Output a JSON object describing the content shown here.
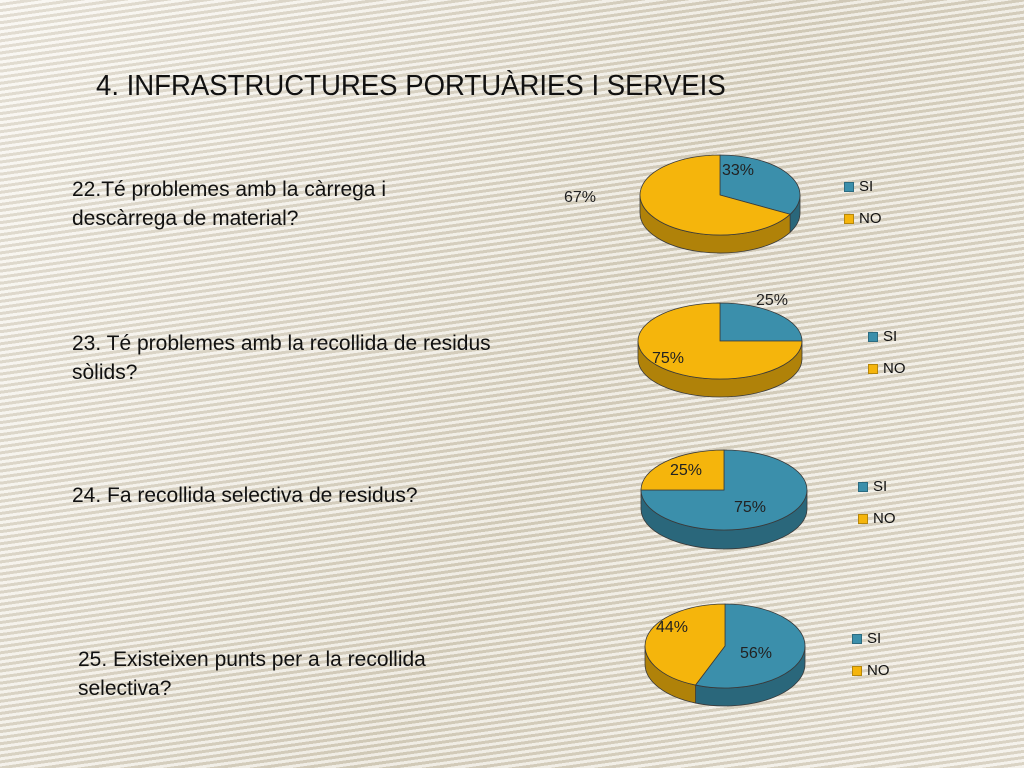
{
  "title": "4. INFRASTRUCTURES PORTUÀRIES I SERVEIS",
  "colors": {
    "SI": "#3b8fab",
    "NO": "#f5b50c"
  },
  "chart_data": [
    {
      "type": "pie",
      "question": "22.Té problemes amb la càrrega i descàrrega de material?",
      "labels": [
        "SI",
        "NO"
      ],
      "values": [
        33,
        67
      ],
      "value_labels": [
        "33%",
        "67%"
      ],
      "legend": [
        "SI",
        "NO"
      ]
    },
    {
      "type": "pie",
      "question": "23. Té problemes amb la recollida de residus sòlids?",
      "labels": [
        "SI",
        "NO"
      ],
      "values": [
        25,
        75
      ],
      "value_labels": [
        "25%",
        "75%"
      ],
      "legend": [
        "SI",
        "NO"
      ]
    },
    {
      "type": "pie",
      "question": "24. Fa recollida selectiva de residus?",
      "labels": [
        "SI",
        "NO"
      ],
      "values": [
        75,
        25
      ],
      "value_labels": [
        "75%",
        "25%"
      ],
      "legend": [
        "SI",
        "NO"
      ]
    },
    {
      "type": "pie",
      "question": "25. Existeixen punts per a la recollida selectiva?",
      "labels": [
        "SI",
        "NO"
      ],
      "values": [
        56,
        44
      ],
      "value_labels": [
        "56%",
        "44%"
      ],
      "legend": [
        "SI",
        "NO"
      ]
    }
  ]
}
